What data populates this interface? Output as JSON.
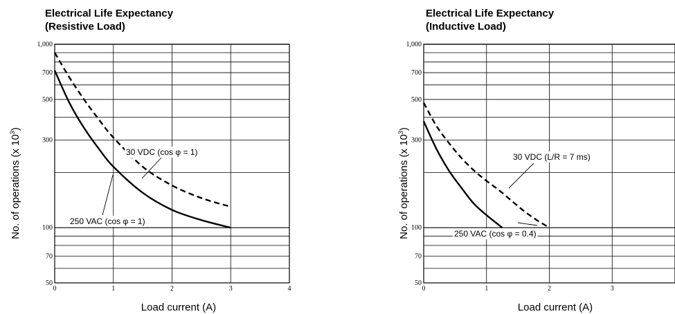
{
  "chart_data": [
    {
      "type": "line",
      "title_line1": "Electrical Life Expectancy",
      "title_line2": "(Resistive Load)",
      "ylabel": "No. of operations (x 10",
      "ylabel_sup": "3",
      "ylabel_close": ")",
      "xlabel": "Load current (A)",
      "yscale": "log",
      "ylim": [
        50,
        1000
      ],
      "xlim": [
        0,
        4
      ],
      "yticks": [
        50,
        70,
        100,
        300,
        500,
        700,
        1000
      ],
      "ytick_labels": [
        "50",
        "70",
        "100",
        "300",
        "500",
        "700",
        "1,000"
      ],
      "xticks": [
        0,
        1,
        2,
        3,
        4
      ],
      "xtick_labels": [
        "0",
        "1",
        "2",
        "3",
        "4"
      ],
      "grid": true,
      "series": [
        {
          "name": "30 VDC (cos φ = 1)",
          "style": "dashed",
          "x": [
            0,
            0.25,
            0.5,
            0.75,
            1.0,
            1.5,
            2.0,
            2.5,
            3.0
          ],
          "y": [
            900,
            660,
            500,
            390,
            310,
            215,
            170,
            145,
            130
          ]
        },
        {
          "name": "250 VAC (cos φ = 1)",
          "style": "solid",
          "x": [
            0,
            0.25,
            0.5,
            0.75,
            1.0,
            1.5,
            2.0,
            2.5,
            3.0
          ],
          "y": [
            720,
            480,
            350,
            270,
            215,
            155,
            125,
            110,
            100
          ]
        }
      ],
      "annotations": [
        {
          "text": "30 VDC (cos φ = 1)",
          "series": 0
        },
        {
          "text": "250 VAC (cos φ = 1)",
          "series": 1
        }
      ]
    },
    {
      "type": "line",
      "title_line1": "Electrical Life Expectancy",
      "title_line2": "(Inductive Load)",
      "ylabel": "No. of operations (x 10",
      "ylabel_sup": "3",
      "ylabel_close": ")",
      "xlabel": "Load current (A)",
      "yscale": "log",
      "ylim": [
        50,
        1000
      ],
      "xlim": [
        0,
        4
      ],
      "yticks": [
        50,
        70,
        100,
        300,
        500,
        700,
        1000
      ],
      "ytick_labels": [
        "50",
        "70",
        "100",
        "300",
        "500",
        "700",
        "1,000"
      ],
      "xticks": [
        0,
        1,
        2,
        3
      ],
      "xtick_labels": [
        "0",
        "1",
        "2",
        "3"
      ],
      "grid": true,
      "series": [
        {
          "name": "30 VDC (L/R = 7 ms)",
          "style": "dashed",
          "x": [
            0,
            0.2,
            0.4,
            0.6,
            0.8,
            1.0,
            1.2,
            1.4,
            1.6,
            1.8,
            2.0
          ],
          "y": [
            480,
            360,
            290,
            240,
            205,
            180,
            160,
            140,
            123,
            110,
            100
          ]
        },
        {
          "name": "250 VAC (cos φ = 0.4)",
          "style": "solid",
          "x": [
            0,
            0.2,
            0.4,
            0.6,
            0.8,
            1.0,
            1.25
          ],
          "y": [
            380,
            270,
            205,
            165,
            135,
            117,
            100
          ]
        }
      ],
      "annotations": [
        {
          "text": "30 VDC (L/R = 7 ms)",
          "series": 0
        },
        {
          "text": "250 VAC (cos φ = 0.4)",
          "series": 1
        }
      ]
    }
  ]
}
